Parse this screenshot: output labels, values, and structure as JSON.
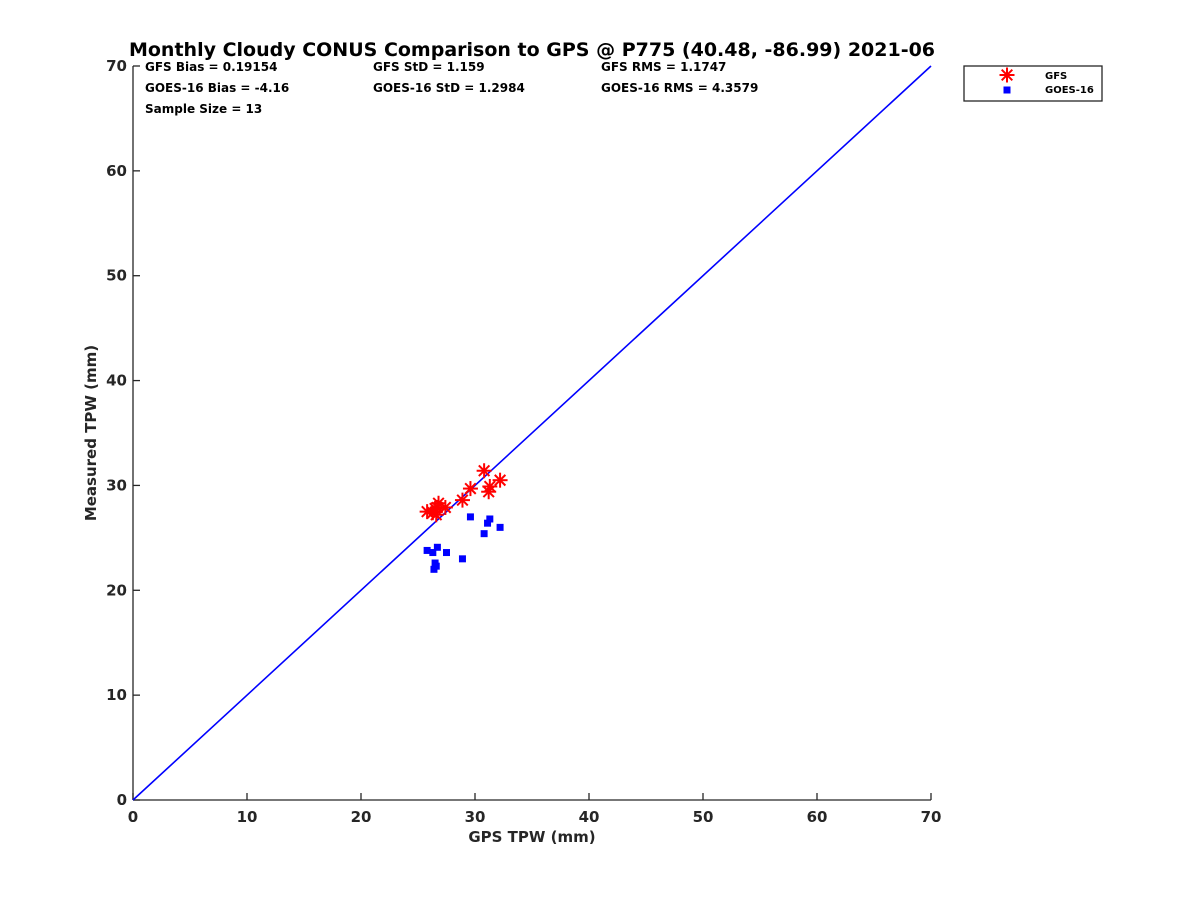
{
  "chart_data": {
    "type": "scatter",
    "title": "Monthly Cloudy CONUS Comparison to GPS @ P775 (40.48, -86.99) 2021-06",
    "xlabel": "GPS TPW (mm)",
    "ylabel": "Measured TPW (mm)",
    "xlim": [
      0,
      70
    ],
    "ylim": [
      0,
      70
    ],
    "xticks": [
      "0",
      "10",
      "20",
      "30",
      "40",
      "50",
      "60",
      "70"
    ],
    "yticks": [
      "0",
      "10",
      "20",
      "30",
      "40",
      "50",
      "60",
      "70"
    ],
    "grid": false,
    "legend_position": "top-right-outside",
    "stats": {
      "gfs_bias": "GFS Bias = 0.19154",
      "goes_bias": "GOES-16 Bias = -4.16",
      "sample_size": "Sample Size = 13",
      "gfs_std": "GFS StD = 1.159",
      "goes_std": "GOES-16 StD = 1.2984",
      "gfs_rms": "GFS RMS = 1.1747",
      "goes_rms": "GOES-16 RMS = 4.3579"
    },
    "reference_line": {
      "x": [
        0,
        70
      ],
      "y": [
        0,
        70
      ],
      "color": "#0000ff"
    },
    "series": [
      {
        "name": "GFS",
        "marker": "asterisk",
        "color": "#ff0000",
        "x": [
          25.8,
          26.3,
          26.5,
          26.6,
          26.7,
          26.8,
          27.4,
          28.9,
          29.6,
          30.8,
          31.2,
          31.3,
          32.2
        ],
        "y": [
          27.5,
          27.4,
          27.8,
          27.2,
          27.9,
          28.3,
          27.9,
          28.6,
          29.7,
          31.4,
          29.4,
          29.9,
          30.5
        ]
      },
      {
        "name": "GOES-16",
        "marker": "square",
        "color": "#0000ff",
        "x": [
          25.8,
          26.3,
          26.4,
          26.5,
          26.6,
          26.7,
          27.5,
          28.9,
          29.6,
          30.8,
          31.1,
          31.3,
          32.2
        ],
        "y": [
          23.8,
          23.6,
          22.0,
          22.6,
          22.3,
          24.1,
          23.6,
          23.0,
          27.0,
          25.4,
          26.4,
          26.8,
          26.0
        ]
      }
    ]
  }
}
